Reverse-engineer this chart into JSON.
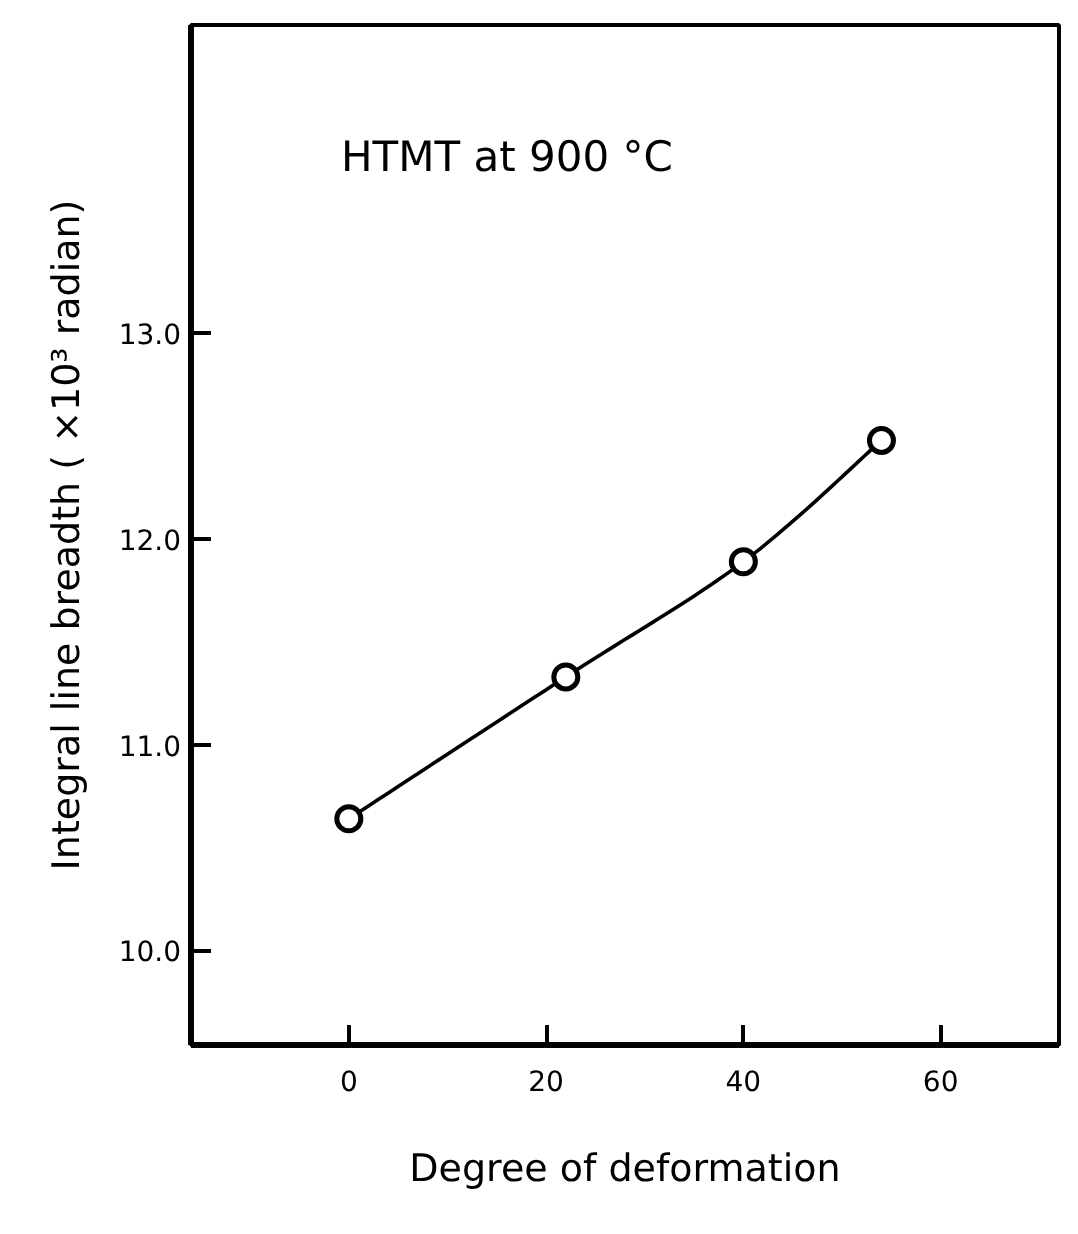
{
  "chart_data": {
    "type": "line",
    "xlabel": "Degree of deformation",
    "ylabel": "Integral line breadth ( ×10³ radian)",
    "annotations": [
      "HTMT at 900 °C"
    ],
    "x": [
      0,
      22,
      40,
      54
    ],
    "series": [
      {
        "color": "#000000",
        "values": [
          10.64,
          11.33,
          11.89,
          12.48
        ]
      }
    ],
    "marker": "circle",
    "line_style": "solid",
    "grid": false,
    "xlim": [
      -16,
      72
    ],
    "xticks": [
      0,
      20,
      40,
      60
    ],
    "ylim": [
      9.54,
      14.5
    ],
    "yticks": [
      {
        "value": 10,
        "label": "10.0"
      },
      {
        "value": 11,
        "label": "11.0"
      },
      {
        "value": 12,
        "label": "12.0"
      },
      {
        "value": 13,
        "label": "13.0"
      }
    ]
  }
}
